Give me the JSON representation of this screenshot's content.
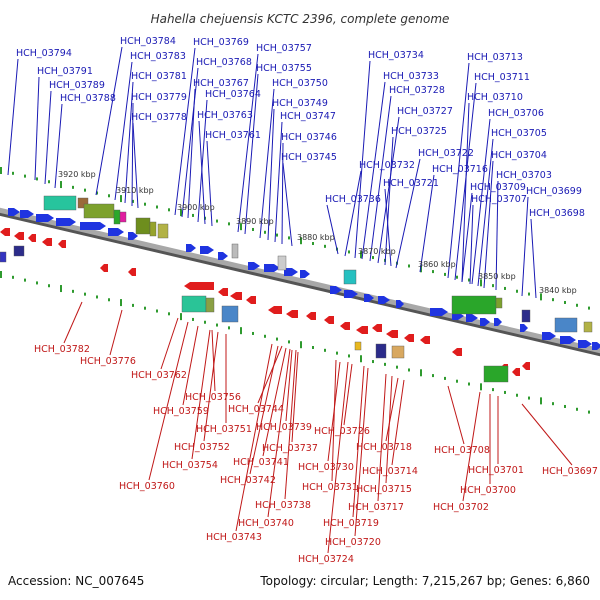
{
  "title": "Hahella chejuensis KCTC 2396, complete genome",
  "accession": "Accession: NC_007645",
  "topology": "Topology: circular; Length: 7,215,267 bp; Genes: 6,860",
  "colors": {
    "top_label": "#1a1ab4",
    "bottom_label": "#c01818",
    "forward_gene": "#1f34e0",
    "reverse_gene": "#e01d1d",
    "backbone": "#8a8a8a",
    "tick": "#2e9a2e"
  },
  "scale_labels": [
    "3920 kbp",
    "3910 kbp",
    "3900 kbp",
    "3890 kbp",
    "3880 kbp",
    "3870 kbp",
    "3860 kbp",
    "3850 kbp",
    "3840 kbp"
  ],
  "top_genes": [
    "HCH_03794",
    "HCH_03791",
    "HCH_03789",
    "HCH_03788",
    "HCH_03784",
    "HCH_03783",
    "HCH_03781",
    "HCH_03779",
    "HCH_03778",
    "HCH_03769",
    "HCH_03768",
    "HCH_03767",
    "HCH_03764",
    "HCH_03763",
    "HCH_03761",
    "HCH_03757",
    "HCH_03755",
    "HCH_03750",
    "HCH_03749",
    "HCH_03747",
    "HCH_03746",
    "HCH_03745",
    "HCH_03734",
    "HCH_03733",
    "HCH_03728",
    "HCH_03727",
    "HCH_03725",
    "HCH_03722",
    "HCH_03732",
    "HCH_03716",
    "HCH_03721",
    "HCH_03736",
    "HCH_03713",
    "HCH_03711",
    "HCH_03710",
    "HCH_03706",
    "HCH_03705",
    "HCH_03704",
    "HCH_03703",
    "HCH_03709",
    "HCH_03707",
    "HCH_03699",
    "HCH_03698"
  ],
  "bottom_genes": [
    "HCH_03782",
    "HCH_03776",
    "HCH_03762",
    "HCH_03756",
    "HCH_03759",
    "HCH_03751",
    "HCH_03752",
    "HCH_03754",
    "HCH_03760",
    "HCH_03744",
    "HCH_03739",
    "HCH_03737",
    "HCH_03741",
    "HCH_03742",
    "HCH_03738",
    "HCH_03740",
    "HCH_03743",
    "HCH_03726",
    "HCH_03730",
    "HCH_03731",
    "HCH_03719",
    "HCH_03720",
    "HCH_03724",
    "HCH_03718",
    "HCH_03714",
    "HCH_03715",
    "HCH_03717",
    "HCH_03708",
    "HCH_03701",
    "HCH_03700",
    "HCH_03702",
    "HCH_03697"
  ]
}
